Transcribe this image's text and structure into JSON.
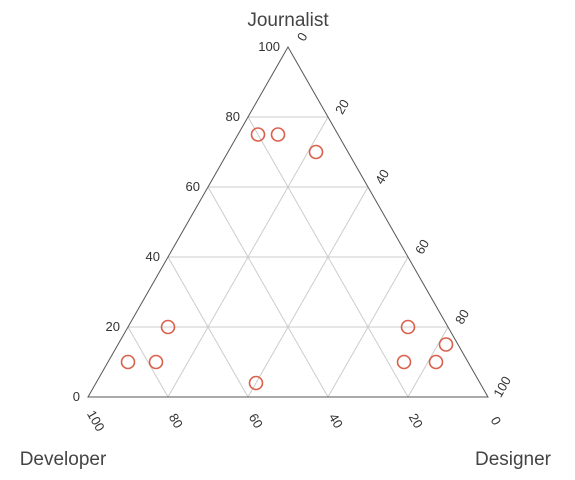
{
  "chart_data": {
    "type": "scatter",
    "ternary": true,
    "axes": {
      "top": "Journalist",
      "left": "Developer",
      "right": "Designer"
    },
    "range": [
      0,
      100
    ],
    "ticks": [
      0,
      20,
      40,
      60,
      80,
      100
    ],
    "grid": true,
    "marker": {
      "shape": "circle",
      "filled": false,
      "color": "#d9604a"
    },
    "points": [
      {
        "journalist": 75,
        "developer": 20,
        "designer": 5
      },
      {
        "journalist": 75,
        "developer": 15,
        "designer": 10
      },
      {
        "journalist": 70,
        "developer": 8,
        "designer": 22
      },
      {
        "journalist": 20,
        "developer": 70,
        "designer": 10
      },
      {
        "journalist": 10,
        "developer": 85,
        "designer": 5
      },
      {
        "journalist": 10,
        "developer": 78,
        "designer": 12
      },
      {
        "journalist": 4,
        "developer": 56,
        "designer": 40
      },
      {
        "journalist": 20,
        "developer": 10,
        "designer": 70
      },
      {
        "journalist": 15,
        "developer": 3,
        "designer": 82
      },
      {
        "journalist": 10,
        "developer": 16,
        "designer": 74
      },
      {
        "journalist": 10,
        "developer": 8,
        "designer": 82
      }
    ]
  }
}
